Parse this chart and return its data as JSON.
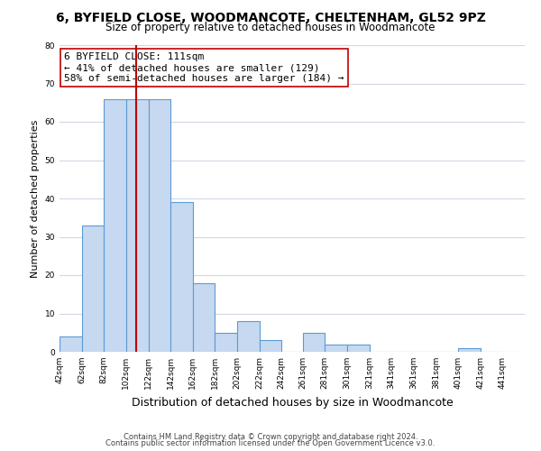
{
  "title1": "6, BYFIELD CLOSE, WOODMANCOTE, CHELTENHAM, GL52 9PZ",
  "title2": "Size of property relative to detached houses in Woodmancote",
  "xlabel": "Distribution of detached houses by size in Woodmancote",
  "ylabel": "Number of detached properties",
  "bar_left_edges": [
    42,
    62,
    82,
    102,
    122,
    142,
    162,
    182,
    202,
    222,
    242,
    261,
    281,
    301,
    321,
    341,
    361,
    381,
    401,
    421
  ],
  "bar_heights": [
    4,
    33,
    66,
    66,
    66,
    39,
    18,
    5,
    8,
    3,
    0,
    5,
    2,
    2,
    0,
    0,
    0,
    0,
    1,
    0
  ],
  "bar_widths": [
    20,
    20,
    20,
    20,
    20,
    20,
    20,
    20,
    20,
    20,
    19,
    20,
    20,
    20,
    20,
    20,
    20,
    20,
    20,
    20
  ],
  "bar_color": "#c6d9f0",
  "bar_edgecolor": "#5b9bd5",
  "tick_labels": [
    "42sqm",
    "62sqm",
    "82sqm",
    "102sqm",
    "122sqm",
    "142sqm",
    "162sqm",
    "182sqm",
    "202sqm",
    "222sqm",
    "242sqm",
    "261sqm",
    "281sqm",
    "301sqm",
    "321sqm",
    "341sqm",
    "361sqm",
    "381sqm",
    "401sqm",
    "421sqm",
    "441sqm"
  ],
  "tick_positions": [
    42,
    62,
    82,
    102,
    122,
    142,
    162,
    182,
    202,
    222,
    242,
    261,
    281,
    301,
    321,
    341,
    361,
    381,
    401,
    421,
    441
  ],
  "vline_x": 111,
  "vline_color": "#c00000",
  "annotation_title": "6 BYFIELD CLOSE: 111sqm",
  "annotation_line1": "← 41% of detached houses are smaller (129)",
  "annotation_line2": "58% of semi-detached houses are larger (184) →",
  "ylim": [
    0,
    80
  ],
  "yticks": [
    0,
    10,
    20,
    30,
    40,
    50,
    60,
    70,
    80
  ],
  "footnote1": "Contains HM Land Registry data © Crown copyright and database right 2024.",
  "footnote2": "Contains public sector information licensed under the Open Government Licence v3.0.",
  "bg_color": "#ffffff",
  "grid_color": "#d0d8e4",
  "title1_fontsize": 10,
  "title2_fontsize": 8.5,
  "xlabel_fontsize": 9,
  "ylabel_fontsize": 8,
  "tick_fontsize": 6.5,
  "annotation_fontsize": 8,
  "footnote_fontsize": 6
}
